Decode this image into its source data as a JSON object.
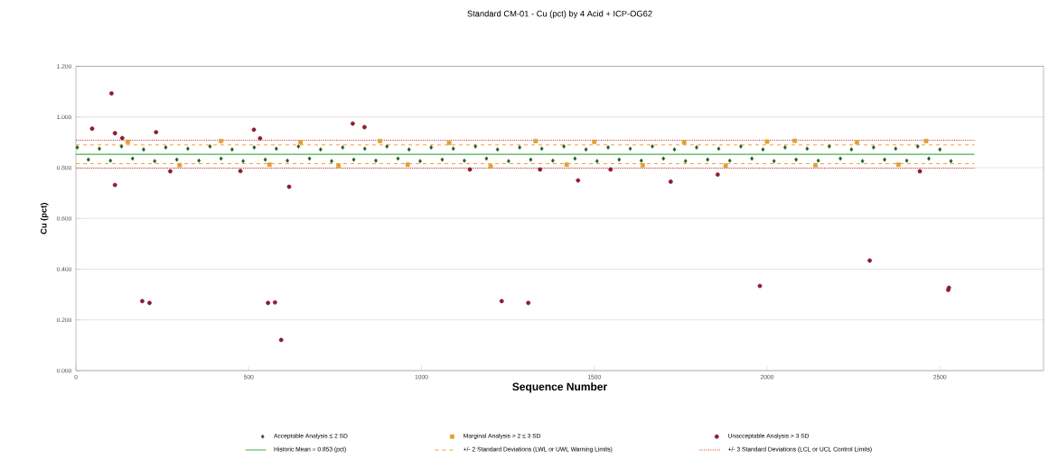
{
  "chart_data": {
    "type": "scatter",
    "title": "Standard CM-01 - Cu (pct) by 4 Acid + ICP-OG62",
    "xlabel": "Sequence Number",
    "ylabel": "Cu (pct)",
    "xlim": [
      0,
      2800
    ],
    "ylim": [
      0,
      1.2
    ],
    "xticks": [
      0,
      500,
      1000,
      1500,
      2000,
      2500
    ],
    "yticks": [
      {
        "value": 0,
        "label": "0.000"
      },
      {
        "value": 0.2,
        "label": "0.200"
      },
      {
        "value": 0.4,
        "label": "0.400"
      },
      {
        "value": 0.6,
        "label": "0.600"
      },
      {
        "value": 0.8,
        "label": "0.800"
      },
      {
        "value": 1.0,
        "label": "1.000"
      },
      {
        "value": 1.2,
        "label": "1.200"
      }
    ],
    "grid": "y",
    "legend": "bottom",
    "series": [
      {
        "name": "Acceptable Analysis ≤ 2 SD",
        "type": "scatter",
        "marker": "diamond",
        "color": "#1e5c1e",
        "x": [
          4,
          36,
          68,
          100,
          132,
          164,
          196,
          228,
          260,
          292,
          324,
          356,
          388,
          420,
          452,
          484,
          516,
          548,
          580,
          612,
          644,
          676,
          708,
          740,
          772,
          804,
          836,
          868,
          900,
          932,
          964,
          996,
          1028,
          1060,
          1092,
          1124,
          1156,
          1188,
          1220,
          1252,
          1284,
          1316,
          1348,
          1380,
          1412,
          1444,
          1476,
          1508,
          1540,
          1572,
          1604,
          1636,
          1668,
          1700,
          1732,
          1764,
          1796,
          1828,
          1860,
          1892,
          1924,
          1956,
          1988,
          2020,
          2052,
          2084,
          2116,
          2148,
          2180,
          2212,
          2244,
          2276,
          2308,
          2340,
          2372,
          2404,
          2436,
          2468,
          2500,
          2532
        ],
        "values": [
          0.88,
          0.832,
          0.875,
          0.828,
          0.884,
          0.836,
          0.872,
          0.826,
          0.88,
          0.832,
          0.875,
          0.828,
          0.884,
          0.836,
          0.872,
          0.826,
          0.88,
          0.832,
          0.875,
          0.828,
          0.884,
          0.836,
          0.872,
          0.826,
          0.88,
          0.832,
          0.875,
          0.828,
          0.884,
          0.836,
          0.872,
          0.826,
          0.88,
          0.832,
          0.875,
          0.828,
          0.884,
          0.836,
          0.872,
          0.826,
          0.88,
          0.832,
          0.875,
          0.828,
          0.884,
          0.836,
          0.872,
          0.826,
          0.88,
          0.832,
          0.875,
          0.828,
          0.884,
          0.836,
          0.872,
          0.826,
          0.88,
          0.832,
          0.875,
          0.828,
          0.884,
          0.836,
          0.872,
          0.826,
          0.88,
          0.832,
          0.875,
          0.828,
          0.884,
          0.836,
          0.872,
          0.826,
          0.88,
          0.832,
          0.875,
          0.828,
          0.884,
          0.836,
          0.872,
          0.826
        ]
      },
      {
        "name": "Marginal Analysis > 2 ≤ 3 SD",
        "type": "scatter",
        "marker": "square",
        "color": "#e0a030",
        "x": [
          150,
          300,
          420,
          560,
          650,
          760,
          880,
          960,
          1080,
          1200,
          1330,
          1420,
          1500,
          1640,
          1760,
          1880,
          2000,
          2080,
          2140,
          2260,
          2380,
          2460
        ],
        "values": [
          0.902,
          0.81,
          0.905,
          0.812,
          0.9,
          0.808,
          0.905,
          0.812,
          0.898,
          0.806,
          0.905,
          0.812,
          0.902,
          0.81,
          0.9,
          0.808,
          0.903,
          0.906,
          0.81,
          0.9,
          0.812,
          0.905
        ]
      },
      {
        "name": "Unacceptable Analysis > 3 SD",
        "type": "scatter",
        "marker": "circle",
        "color": "#8b1c2c",
        "x": [
          103,
          47,
          113,
          134,
          113,
          232,
          273,
          192,
          213,
          476,
          515,
          533,
          556,
          576,
          594,
          617,
          801,
          835,
          1232,
          1309,
          1140,
          1343,
          1453,
          1547,
          1721,
          1857,
          1979,
          2297,
          2526,
          2524,
          2442
        ],
        "values": [
          1.093,
          0.954,
          0.936,
          0.917,
          0.732,
          0.94,
          0.786,
          0.274,
          0.267,
          0.787,
          0.95,
          0.916,
          0.267,
          0.269,
          0.121,
          0.725,
          0.974,
          0.96,
          0.274,
          0.267,
          0.793,
          0.793,
          0.75,
          0.793,
          0.745,
          0.773,
          0.334,
          0.434,
          0.327,
          0.318,
          0.786
        ]
      },
      {
        "name": "Historic Mean = 0.853 (pct)",
        "type": "line",
        "line_style": "solid",
        "color": "#4caf50",
        "x": [
          0,
          2600
        ],
        "values": [
          0.853,
          0.853
        ]
      },
      {
        "name": "+/- 2 Standard Deviations (LWL or UWL Warning Limits)",
        "type": "line",
        "line_style": "dashed",
        "color": "#f0a040",
        "x": [
          0,
          2600
        ],
        "values": [
          0.89,
          0.89
        ]
      },
      {
        "name": "+/- 3 Standard Deviations (LCL or UCL Control Limits)",
        "type": "line",
        "line_style": "dotted",
        "color": "#e03030",
        "x": [
          0,
          2600
        ],
        "values": [
          0.908,
          0.908
        ]
      },
      {
        "type": "line",
        "line_style": "dashed",
        "color": "#f0a040",
        "x": [
          0,
          2600
        ],
        "values": [
          0.816,
          0.816
        ]
      },
      {
        "type": "line",
        "line_style": "dotted",
        "color": "#e03030",
        "x": [
          0,
          2600
        ],
        "values": [
          0.798,
          0.798
        ]
      }
    ]
  }
}
